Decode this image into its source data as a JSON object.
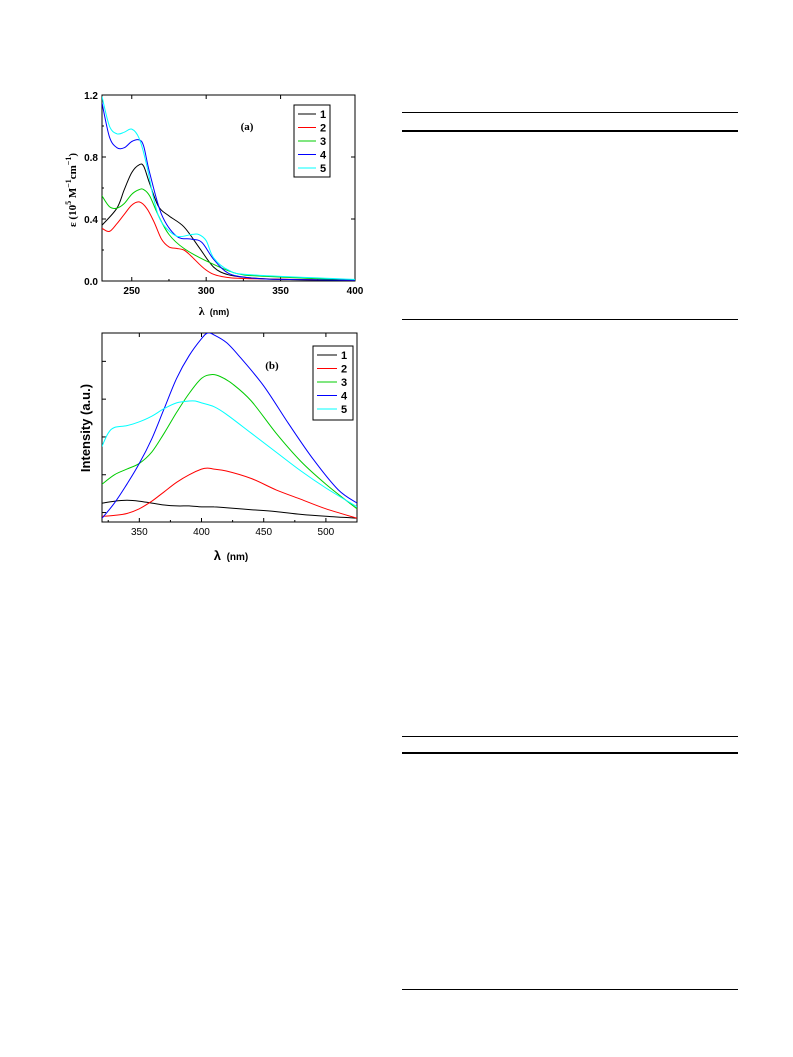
{
  "chart_data": [
    {
      "type": "line",
      "panel_label": "(a)",
      "xlabel": "λ",
      "xlabel_unit": "(nm)",
      "ylabel_prefix": "ε (10",
      "ylabel_exp1": "5",
      "ylabel_mid": " M",
      "ylabel_exp2": "−1",
      "ylabel_mid2": "cm",
      "ylabel_exp3": "−1",
      "ylabel_suffix": ")",
      "xlim": [
        230,
        400
      ],
      "ylim": [
        0.0,
        1.2
      ],
      "xticks": [
        250,
        300,
        350,
        400
      ],
      "yticks": [
        0.0,
        0.4,
        0.8,
        1.2
      ],
      "ytick_labels": [
        "0.0",
        "0.4",
        "0.8",
        "1.2"
      ],
      "legend_position": "top-right",
      "series": [
        {
          "name": "1",
          "color": "#000000",
          "x": [
            230,
            240,
            245,
            250,
            255,
            258,
            262,
            268,
            275,
            285,
            295,
            305,
            315,
            330,
            350,
            400
          ],
          "y": [
            0.36,
            0.47,
            0.59,
            0.7,
            0.75,
            0.74,
            0.63,
            0.48,
            0.42,
            0.35,
            0.22,
            0.09,
            0.04,
            0.02,
            0.01,
            0.005
          ]
        },
        {
          "name": "2",
          "color": "#ff0000",
          "x": [
            230,
            235,
            240,
            245,
            250,
            255,
            260,
            265,
            270,
            275,
            280,
            285,
            290,
            300,
            310,
            330,
            400
          ],
          "y": [
            0.34,
            0.32,
            0.37,
            0.43,
            0.49,
            0.51,
            0.47,
            0.38,
            0.27,
            0.22,
            0.21,
            0.2,
            0.16,
            0.07,
            0.03,
            0.015,
            0.005
          ]
        },
        {
          "name": "3",
          "color": "#00cc00",
          "x": [
            230,
            235,
            240,
            245,
            250,
            255,
            258,
            262,
            268,
            275,
            285,
            300,
            320,
            340,
            400
          ],
          "y": [
            0.55,
            0.48,
            0.47,
            0.5,
            0.56,
            0.59,
            0.59,
            0.55,
            0.42,
            0.3,
            0.21,
            0.13,
            0.05,
            0.03,
            0.005
          ]
        },
        {
          "name": "4",
          "color": "#0000ff",
          "x": [
            230,
            235,
            240,
            245,
            250,
            255,
            258,
            262,
            270,
            280,
            290,
            297,
            305,
            315,
            330,
            350,
            400
          ],
          "y": [
            1.15,
            0.93,
            0.86,
            0.86,
            0.9,
            0.91,
            0.87,
            0.7,
            0.43,
            0.29,
            0.27,
            0.25,
            0.14,
            0.05,
            0.02,
            0.01,
            0.005
          ]
        },
        {
          "name": "5",
          "color": "#00ffff",
          "x": [
            230,
            235,
            240,
            245,
            250,
            255,
            260,
            265,
            270,
            280,
            290,
            295,
            300,
            305,
            315,
            330,
            400
          ],
          "y": [
            1.19,
            1.0,
            0.95,
            0.96,
            0.98,
            0.92,
            0.75,
            0.52,
            0.38,
            0.29,
            0.3,
            0.3,
            0.26,
            0.15,
            0.07,
            0.04,
            0.01
          ]
        }
      ]
    },
    {
      "type": "line",
      "panel_label": "(b)",
      "xlabel": "λ",
      "xlabel_unit": "(nm)",
      "ylabel": "Intensity (a.u.)",
      "xlim": [
        320,
        525
      ],
      "ylim": [
        0,
        100
      ],
      "xticks": [
        350,
        400,
        450,
        500
      ],
      "legend_position": "top-right",
      "series": [
        {
          "name": "1",
          "color": "#000000",
          "x": [
            320,
            330,
            340,
            350,
            360,
            370,
            380,
            390,
            400,
            410,
            420,
            440,
            460,
            480,
            500,
            525
          ],
          "y": [
            10,
            11,
            11.5,
            11,
            10,
            9,
            8.5,
            8.5,
            8,
            8,
            7.5,
            6.5,
            5.5,
            4,
            3,
            2
          ]
        },
        {
          "name": "2",
          "color": "#ff0000",
          "x": [
            320,
            330,
            340,
            350,
            360,
            370,
            380,
            390,
            400,
            405,
            410,
            420,
            440,
            460,
            480,
            500,
            525
          ],
          "y": [
            3,
            3.5,
            4.5,
            7,
            11,
            16,
            21,
            25,
            28,
            28.5,
            28,
            27,
            23,
            17,
            12,
            7,
            2
          ]
        },
        {
          "name": "3",
          "color": "#00cc00",
          "x": [
            320,
            330,
            340,
            350,
            360,
            370,
            380,
            390,
            400,
            408,
            415,
            425,
            440,
            460,
            480,
            500,
            525
          ],
          "y": [
            20,
            25,
            28,
            31,
            37,
            47,
            58,
            68,
            76,
            78,
            77,
            73,
            64,
            47,
            32,
            20,
            7
          ]
        },
        {
          "name": "4",
          "color": "#0000ff",
          "x": [
            320,
            330,
            340,
            350,
            360,
            370,
            380,
            390,
            400,
            405,
            410,
            420,
            430,
            450,
            470,
            490,
            510,
            525
          ],
          "y": [
            2,
            10,
            20,
            31,
            44,
            60,
            76,
            88,
            97,
            100,
            99,
            95,
            88,
            72,
            52,
            33,
            17,
            10
          ]
        },
        {
          "name": "5",
          "color": "#00ffff",
          "x": [
            320,
            325,
            330,
            340,
            350,
            360,
            370,
            380,
            390,
            395,
            400,
            410,
            420,
            440,
            460,
            480,
            500,
            525
          ],
          "y": [
            40,
            47,
            50,
            51,
            53,
            56,
            60,
            63,
            64,
            64,
            63,
            61,
            57,
            47,
            37,
            27,
            18,
            8
          ]
        }
      ]
    }
  ]
}
